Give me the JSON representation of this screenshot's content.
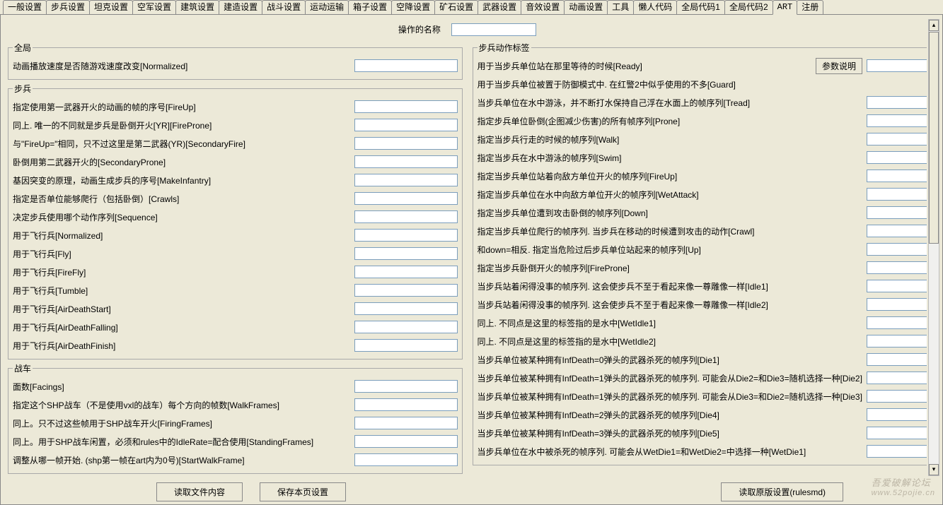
{
  "tabs": [
    "一般设置",
    "步兵设置",
    "坦克设置",
    "空军设置",
    "建筑设置",
    "建造设置",
    "战斗设置",
    "运动运输",
    "箱子设置",
    "空降设置",
    "矿石设置",
    "武器设置",
    "音效设置",
    "动画设置",
    "工具",
    "懒人代码",
    "全局代码1",
    "全局代码2",
    "ART",
    "注册"
  ],
  "active_tab": "ART",
  "title_label": "操作的名称",
  "title_value": "",
  "param_button": "参数说明",
  "footer": {
    "read_file": "读取文件内容",
    "save_page": "保存本页设置",
    "read_orig": "读取原版设置(rulesmd)"
  },
  "watermark_line1": "吾爱破解论坛",
  "watermark_line2": "www.52pojie.cn",
  "left_groups": [
    {
      "legend": "全局",
      "rows": [
        {
          "label": "动画播放速度是否随游戏速度改变[Normalized]",
          "val": ""
        }
      ]
    },
    {
      "legend": "步兵",
      "rows": [
        {
          "label": "指定使用第一武器开火的动画的帧的序号[FireUp]",
          "val": ""
        },
        {
          "label": "同上. 唯一的不同就是步兵是卧倒开火[YR][FireProne]",
          "val": ""
        },
        {
          "label": "与\"FireUp=\"相同，只不过这里是第二武器(YR)[SecondaryFire]",
          "val": ""
        },
        {
          "label": "卧倒用第二武器开火的[SecondaryProne]",
          "val": ""
        },
        {
          "label": "基因突变的原理，动画生成步兵的序号[MakeInfantry]",
          "val": ""
        },
        {
          "label": "指定是否单位能够爬行（包括卧倒）[Crawls]",
          "val": ""
        },
        {
          "label": "决定步兵使用哪个动作序列[Sequence]",
          "val": ""
        },
        {
          "label": "用于飞行兵[Normalized]",
          "val": ""
        },
        {
          "label": "用于飞行兵[Fly]",
          "val": ""
        },
        {
          "label": "用于飞行兵[FireFly]",
          "val": ""
        },
        {
          "label": "用于飞行兵[Tumble]",
          "val": ""
        },
        {
          "label": "用于飞行兵[AirDeathStart]",
          "val": ""
        },
        {
          "label": "用于飞行兵[AirDeathFalling]",
          "val": ""
        },
        {
          "label": "用于飞行兵[AirDeathFinish]",
          "val": ""
        }
      ]
    },
    {
      "legend": "战车",
      "rows": [
        {
          "label": "面数[Facings]",
          "val": ""
        },
        {
          "label": "指定这个SHP战车（不是使用vxl的战车）每个方向的帧数[WalkFrames]",
          "val": ""
        },
        {
          "label": "同上。只不过这些帧用于SHP战车开火[FiringFrames]",
          "val": ""
        },
        {
          "label": "同上。用于SHP战车闲置，必须和rules中的IdleRate=配合使用[StandingFrames]",
          "val": ""
        },
        {
          "label": "调整从哪一帧开始. (shp第一帧在art内为0号)[StartWalkFrame]",
          "val": ""
        }
      ]
    }
  ],
  "right_groups": [
    {
      "legend": "步兵动作标签",
      "has_param_btn": true,
      "rows": [
        {
          "label": "用于当步兵单位站在那里等待的时候[Ready]",
          "val": ""
        },
        {
          "label": "用于当步兵单位被置于防御模式中. 在红警2中似乎使用的不多[Guard]",
          "val": "",
          "noinput": true
        },
        {
          "label": "当步兵单位在水中游泳，并不断打水保持自己浮在水面上的帧序列[Tread]",
          "val": ""
        },
        {
          "label": "指定步兵单位卧倒(企图减少伤害)的所有帧序列[Prone]",
          "val": ""
        },
        {
          "label": "指定当步兵行走的时候的帧序列[Walk]",
          "val": ""
        },
        {
          "label": "指定当步兵在水中游泳的帧序列[Swim]",
          "val": ""
        },
        {
          "label": "指定当步兵单位站着向敌方单位开火的帧序列[FireUp]",
          "val": ""
        },
        {
          "label": "指定当步兵单位在水中向敌方单位开火的帧序列[WetAttack]",
          "val": ""
        },
        {
          "label": "指定当步兵单位遭到攻击卧倒的帧序列[Down]",
          "val": ""
        },
        {
          "label": "指定当步兵单位爬行的帧序列. 当步兵在移动的时候遭到攻击的动作[Crawl]",
          "val": ""
        },
        {
          "label": "和down=相反. 指定当危险过后步兵单位站起来的帧序列[Up]",
          "val": ""
        },
        {
          "label": "指定当步兵卧倒开火的帧序列[FireProne]",
          "val": ""
        },
        {
          "label": "当步兵站着闲得没事的帧序列. 这会使步兵不至于看起来像一尊雕像一样[Idle1]",
          "val": ""
        },
        {
          "label": "当步兵站着闲得没事的帧序列. 这会使步兵不至于看起来像一尊雕像一样[Idle2]",
          "val": ""
        },
        {
          "label": "同上. 不同点是这里的标签指的是水中[WetIdle1]",
          "val": ""
        },
        {
          "label": "同上. 不同点是这里的标签指的是水中[WetIdle2]",
          "val": ""
        },
        {
          "label": "当步兵单位被某种拥有InfDeath=0弹头的武器杀死的帧序列[Die1]",
          "val": ""
        },
        {
          "label": "当步兵单位被某种拥有InfDeath=1弹头的武器杀死的帧序列. 可能会从Die2=和Die3=随机选择一种[Die2]",
          "val": ""
        },
        {
          "label": "当步兵单位被某种拥有InfDeath=1弹头的武器杀死的帧序列. 可能会从Die3=和Die2=随机选择一种[Die3]",
          "val": ""
        },
        {
          "label": "当步兵单位被某种拥有InfDeath=2弹头的武器杀死的帧序列[Die4]",
          "val": ""
        },
        {
          "label": "当步兵单位被某种拥有InfDeath=3弹头的武器杀死的帧序列[Die5]",
          "val": ""
        },
        {
          "label": "当步兵单位在水中被杀死的帧序列. 可能会从WetDie1=和WetDie2=中选择一种[WetDie1]",
          "val": ""
        }
      ]
    }
  ]
}
